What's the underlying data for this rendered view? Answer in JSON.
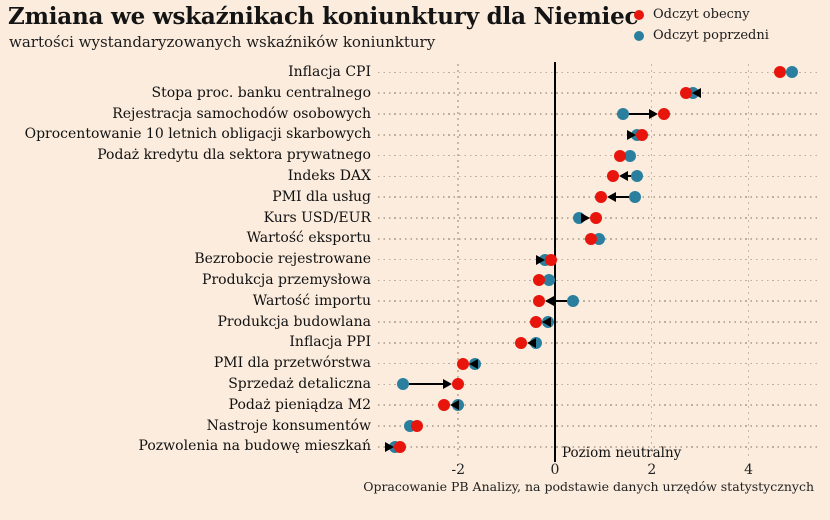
{
  "header": {
    "title": "Zmiana we wskaźnikach koniunktury dla Niemiec",
    "subtitle": "wartości wystandaryzowanych wskaźników koniunktury"
  },
  "legend": {
    "current": {
      "label": "Odczyt obecny",
      "color": "#e8150d"
    },
    "previous": {
      "label": "Odczyt poprzedni",
      "color": "#2a7f9e"
    }
  },
  "chart_data": {
    "type": "scatter",
    "variant": "dumbbell-dot-plot",
    "title": "Zmiana we wskaźnikach koniunktury dla Niemiec",
    "subtitle": "wartości wystandaryzowanych wskaźników koniunktury",
    "xlabel": "",
    "xlim": [
      -3.66,
      5.48
    ],
    "xticks": [
      -2,
      0,
      2,
      4
    ],
    "grid": "dotted-vertical",
    "legend_position": "top-right",
    "series_labels": [
      "Odczyt obecny",
      "Odczyt poprzedni"
    ],
    "colors": {
      "current": "#e8150d",
      "previous": "#2a7f9e",
      "arrow": "#000000"
    },
    "neutral_line": {
      "x": 0,
      "label": "Poziom neutralny"
    },
    "source": "Opracowanie PB Analizy, na podstawie danych urzędów statystycznych",
    "indicators": [
      {
        "label": "Inflacja CPI",
        "current": 4.65,
        "previous": 4.9,
        "arrow": false
      },
      {
        "label": "Stopa proc. banku centralnego",
        "current": 2.7,
        "previous": 2.85,
        "arrow": true
      },
      {
        "label": "Rejestracja samochodów osobowych",
        "current": 2.25,
        "previous": 1.4,
        "arrow": true
      },
      {
        "label": "Oprocentowanie 10 letnich obligacji skarbowych",
        "current": 1.8,
        "previous": 1.7,
        "arrow": true
      },
      {
        "label": "Podaż kredytu dla sektora prywatnego",
        "current": 1.35,
        "previous": 1.55,
        "arrow": false
      },
      {
        "label": "Indeks DAX",
        "current": 1.2,
        "previous": 1.7,
        "arrow": true
      },
      {
        "label": "PMI dla usług",
        "current": 0.95,
        "previous": 1.65,
        "arrow": true
      },
      {
        "label": "Kurs USD/EUR",
        "current": 0.85,
        "previous": 0.5,
        "arrow": true
      },
      {
        "label": "Wartość eksportu",
        "current": 0.75,
        "previous": 0.9,
        "arrow": false
      },
      {
        "label": "Bezrobocie rejestrowane",
        "current": -0.08,
        "previous": -0.2,
        "arrow": true
      },
      {
        "label": "Produkcja przemysłowa",
        "current": -0.33,
        "previous": -0.12,
        "arrow": false
      },
      {
        "label": "Wartość importu",
        "current": -0.33,
        "previous": 0.37,
        "arrow": true
      },
      {
        "label": "Produkcja budowlana",
        "current": -0.4,
        "previous": -0.15,
        "arrow": true
      },
      {
        "label": "Inflacja PPI",
        "current": -0.7,
        "previous": -0.4,
        "arrow": true
      },
      {
        "label": "PMI dla przetwórstwa",
        "current": -1.9,
        "previous": -1.65,
        "arrow": true
      },
      {
        "label": "Sprzedaż detaliczna",
        "current": -2.0,
        "previous": -3.15,
        "arrow": true
      },
      {
        "label": "Podaż pieniądza M2",
        "current": -2.3,
        "previous": -2.0,
        "arrow": true
      },
      {
        "label": "Nastroje konsumentów",
        "current": -2.85,
        "previous": -3.0,
        "arrow": false
      },
      {
        "label": "Pozwolenia na budowę mieszkań",
        "current": -3.2,
        "previous": -3.3,
        "arrow": true
      }
    ]
  }
}
